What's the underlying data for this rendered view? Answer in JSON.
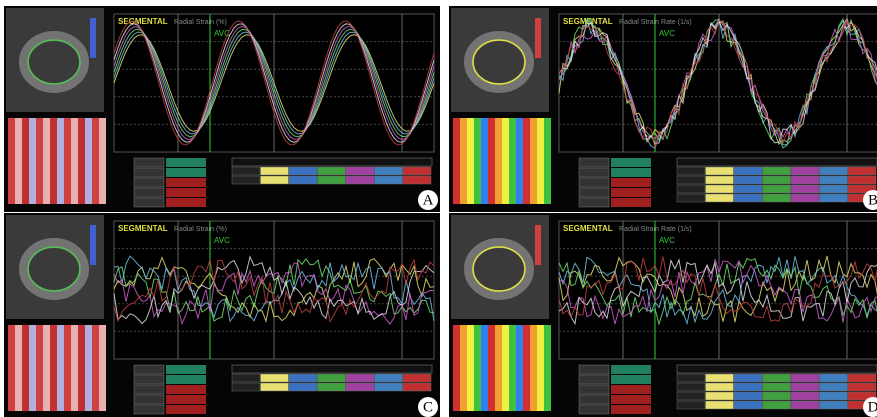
{
  "panels": [
    {
      "label": "A",
      "title": "SEGMENTAL",
      "subtitle": "Radial Strain (%)",
      "marker": "AVC"
    },
    {
      "label": "B",
      "title": "SEGMENTAL",
      "subtitle": "Radial Strain Rate (1/s)",
      "marker": "AVC"
    },
    {
      "label": "C",
      "title": "SEGMENTAL",
      "subtitle": "Radial Strain (%)",
      "marker": "AVC"
    },
    {
      "label": "D",
      "title": "SEGMENTAL",
      "subtitle": "Radial Strain Rate (1/s)",
      "marker": "AVC"
    }
  ]
}
